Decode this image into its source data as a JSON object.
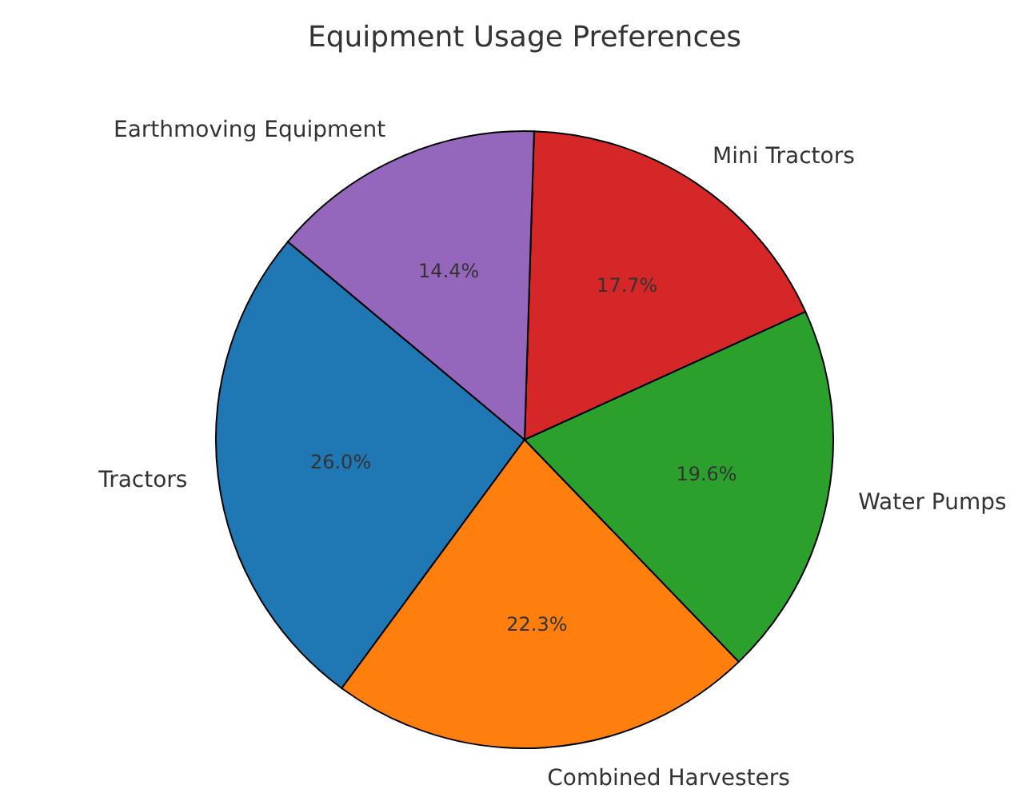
{
  "chart_data": {
    "type": "pie",
    "title": "Equipment Usage Preferences",
    "categories": [
      "Tractors",
      "Combined Harvesters",
      "Water Pumps",
      "Mini Tractors",
      "Earthmoving Equipment"
    ],
    "values": [
      26.0,
      22.3,
      19.6,
      17.7,
      14.4
    ],
    "colors": [
      "#1f77b4",
      "#ff7f0e",
      "#2ca02c",
      "#d62728",
      "#9467bd"
    ],
    "value_labels": [
      "26.0%",
      "22.3%",
      "19.6%",
      "17.7%",
      "14.4%"
    ]
  }
}
